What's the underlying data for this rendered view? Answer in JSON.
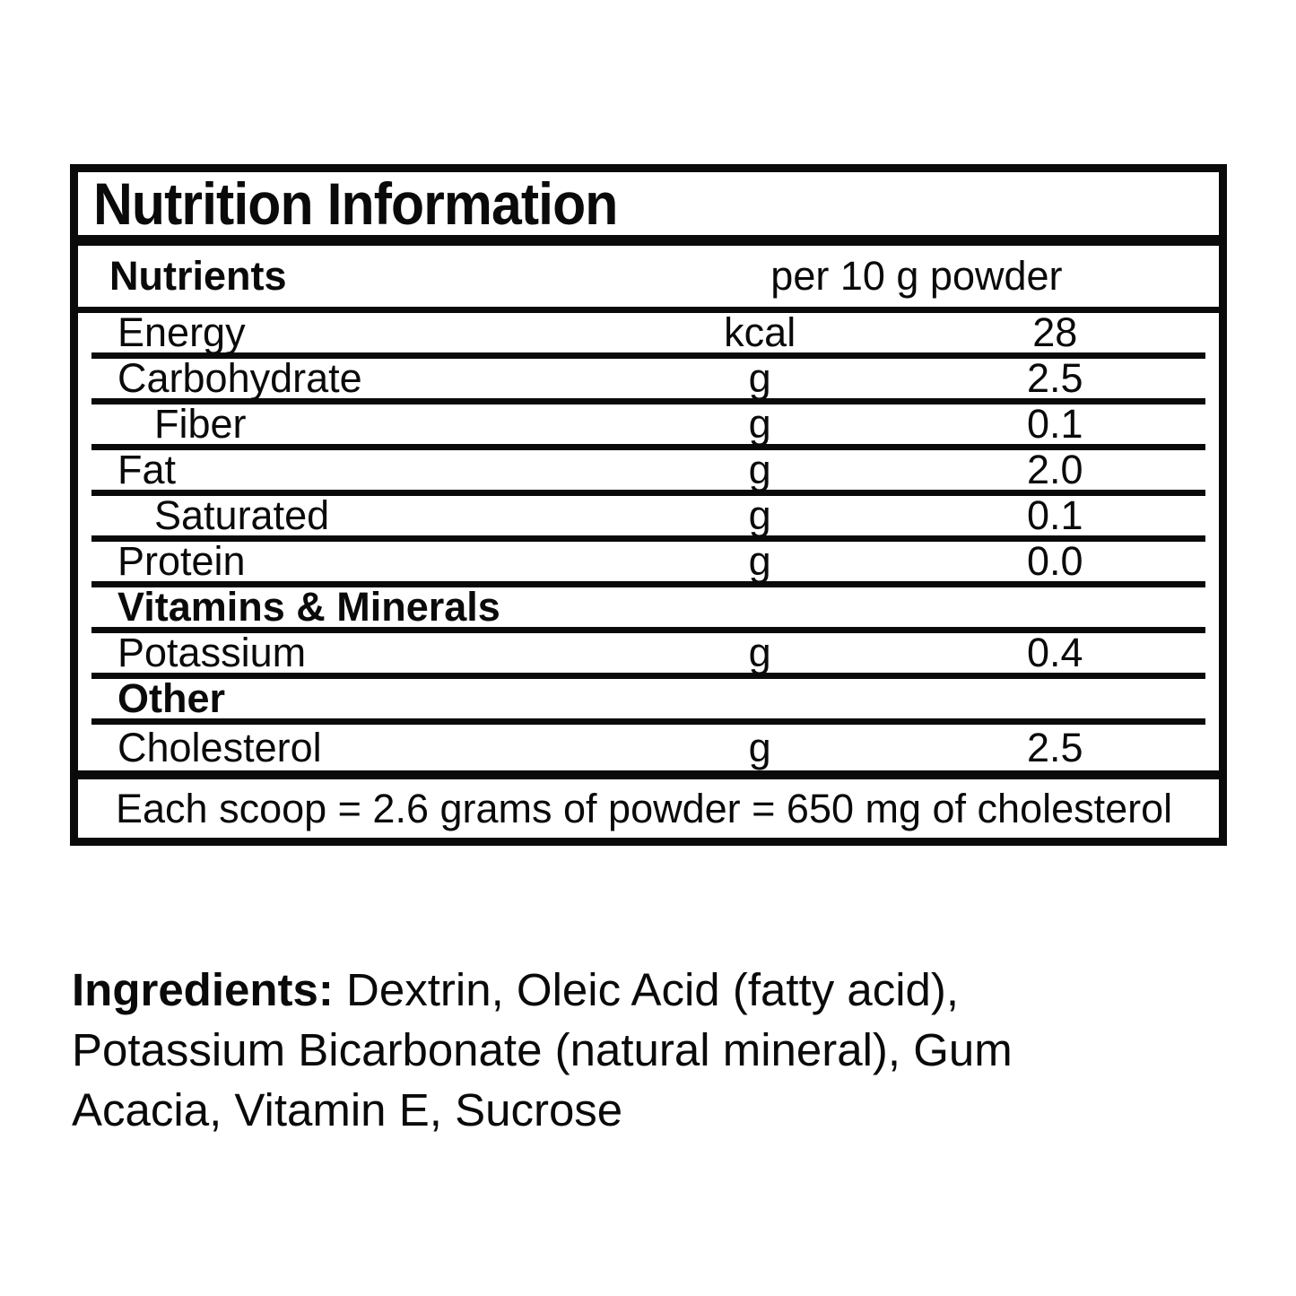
{
  "label": {
    "title": "Nutrition Information",
    "header": {
      "nutrients_col": "Nutrients",
      "amount_col": "per 10 g powder"
    },
    "rows": [
      {
        "name": "Energy",
        "unit": "kcal",
        "value": "28",
        "style": "normal"
      },
      {
        "name": "Carbohydrate",
        "unit": "g",
        "value": "2.5",
        "style": "normal"
      },
      {
        "name": "Fiber",
        "unit": "g",
        "value": "0.1",
        "style": "indent"
      },
      {
        "name": "Fat",
        "unit": "g",
        "value": "2.0",
        "style": "normal"
      },
      {
        "name": "Saturated",
        "unit": "g",
        "value": "0.1",
        "style": "indent"
      },
      {
        "name": "Protein",
        "unit": "g",
        "value": "0.0",
        "style": "normal"
      },
      {
        "name": "Vitamins & Minerals",
        "unit": "",
        "value": "",
        "style": "section"
      },
      {
        "name": "Potassium",
        "unit": "g",
        "value": "0.4",
        "style": "normal"
      },
      {
        "name": "Other",
        "unit": "",
        "value": "",
        "style": "section"
      },
      {
        "name": "Cholesterol",
        "unit": "g",
        "value": "2.5",
        "style": "normal"
      }
    ],
    "footnote": "Each scoop = 2.6 grams of powder = 650 mg of cholesterol"
  },
  "ingredients": {
    "label": "Ingredients:",
    "line1": " Dextrin, Oleic Acid (fatty acid),",
    "line2": "Potassium Bicarbonate (natural mineral), Gum",
    "line3": "Acacia, Vitamin E, Sucrose"
  },
  "colors": {
    "ink": "#0a0a0a",
    "background": "#ffffff"
  }
}
